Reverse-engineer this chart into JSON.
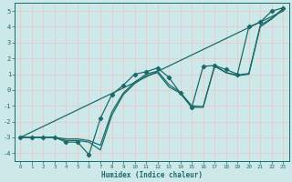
{
  "xlabel": "Humidex (Indice chaleur)",
  "bg_color": "#cde8e8",
  "grid_color": "#e8c8c8",
  "line_color": "#1a6b6b",
  "xlim": [
    -0.5,
    23.5
  ],
  "ylim": [
    -4.5,
    5.5
  ],
  "xticks": [
    0,
    1,
    2,
    3,
    4,
    5,
    6,
    7,
    8,
    9,
    10,
    11,
    12,
    13,
    14,
    15,
    16,
    17,
    18,
    19,
    20,
    21,
    22,
    23
  ],
  "yticks": [
    -4,
    -3,
    -2,
    -1,
    0,
    1,
    2,
    3,
    4,
    5
  ],
  "line1_x": [
    0,
    1,
    2,
    3,
    4,
    5,
    6,
    7,
    8,
    9,
    10,
    11,
    12,
    13,
    14,
    15,
    16,
    17,
    18,
    19,
    20,
    21,
    22,
    23
  ],
  "line1_y": [
    -3,
    -3,
    -3,
    -3,
    -3.3,
    -3.3,
    -4.1,
    -1.8,
    -0.3,
    0.3,
    1.0,
    1.15,
    1.4,
    0.8,
    -0.2,
    -1.1,
    1.5,
    1.55,
    1.3,
    1.0,
    4.0,
    4.3,
    5.0,
    5.2
  ],
  "line2_x": [
    0,
    23
  ],
  "line2_y": [
    -3,
    5
  ],
  "line3_x": [
    0,
    1,
    2,
    3,
    4,
    5,
    6,
    7,
    8,
    9,
    10,
    11,
    12,
    13,
    14,
    15,
    16,
    17,
    18,
    19,
    20,
    21,
    22,
    23
  ],
  "line3_y": [
    -3,
    -3,
    -3,
    -3,
    -3.2,
    -3.2,
    -3.3,
    -3.8,
    -1.6,
    -0.3,
    0.4,
    0.9,
    1.1,
    0.2,
    -0.2,
    -1.1,
    -1.1,
    1.55,
    1.1,
    0.9,
    1.0,
    4.0,
    4.5,
    5.1
  ],
  "line4_x": [
    0,
    1,
    2,
    3,
    4,
    5,
    6,
    7,
    8,
    9,
    10,
    11,
    12,
    13,
    14,
    15,
    16,
    17,
    18,
    19,
    20,
    21,
    22,
    23
  ],
  "line4_y": [
    -3,
    -3,
    -3,
    -3,
    -3.1,
    -3.1,
    -3.2,
    -3.5,
    -1.4,
    -0.2,
    0.5,
    1.0,
    1.2,
    0.35,
    -0.15,
    -1.0,
    -1.05,
    1.5,
    1.1,
    0.95,
    1.05,
    4.1,
    4.55,
    5.15
  ]
}
